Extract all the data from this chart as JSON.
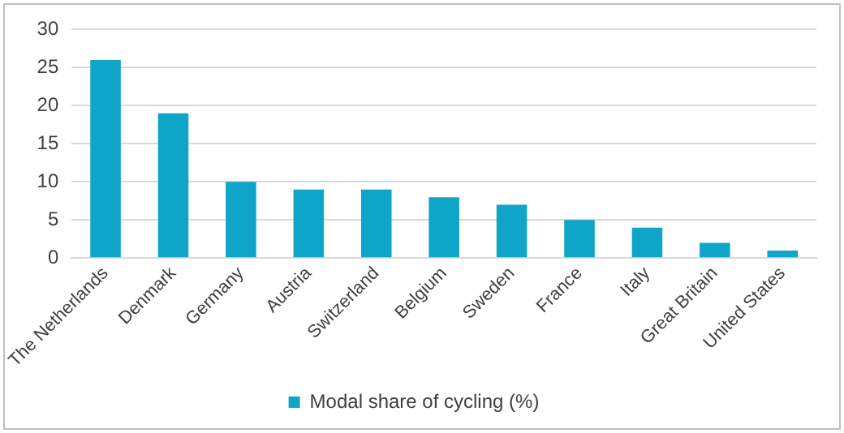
{
  "chart_data": {
    "type": "bar",
    "categories": [
      "The Netherlands",
      "Denmark",
      "Germany",
      "Austria",
      "Switzerland",
      "Belgium",
      "Sweden",
      "France",
      "Italy",
      "Great Britain",
      "United States"
    ],
    "series": [
      {
        "name": "Modal share of cycling (%)",
        "color": "#0ea5c9",
        "values": [
          26,
          19,
          10,
          9,
          9,
          8,
          7,
          5,
          4,
          2,
          1
        ]
      }
    ],
    "ylim": [
      0,
      30
    ],
    "yticks": [
      0,
      5,
      10,
      15,
      20,
      25,
      30
    ],
    "grid": "y",
    "legend": "bottom"
  }
}
